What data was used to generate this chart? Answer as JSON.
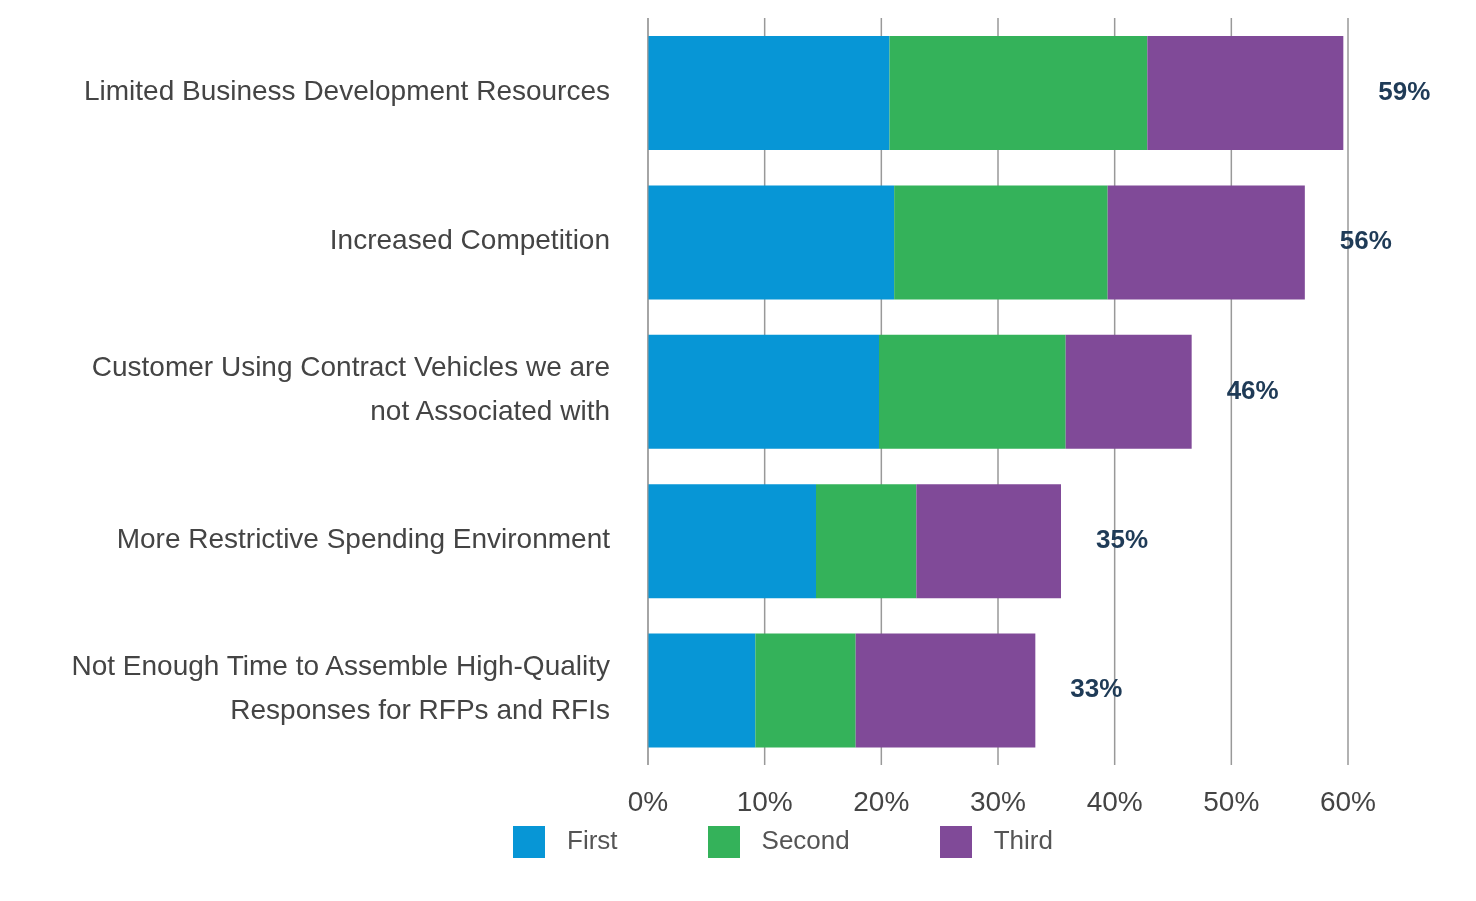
{
  "chart_data": {
    "type": "bar",
    "orientation": "horizontal",
    "stacked": true,
    "categories": [
      "Limited Business Development Resources",
      "Increased Competition",
      "Customer Using Contract Vehicles we are not Associated with",
      "More Restrictive Spending Environment",
      "Not Enough Time to Assemble High-Quality Responses for RFPs and RFIs"
    ],
    "series": [
      {
        "name": "First",
        "color": "#0796d6",
        "values": [
          20.7,
          21.1,
          19.8,
          14.4,
          9.2
        ]
      },
      {
        "name": "Second",
        "color": "#34b25a",
        "values": [
          22.1,
          18.3,
          16.0,
          8.6,
          8.6
        ]
      },
      {
        "name": "Third",
        "color": "#804a98",
        "values": [
          16.8,
          16.9,
          10.8,
          12.4,
          15.4
        ]
      }
    ],
    "totals": [
      "59%",
      "56%",
      "46%",
      "35%",
      "33%"
    ],
    "xlim": [
      0,
      60
    ],
    "xticks": [
      {
        "value": 0,
        "label": "0%"
      },
      {
        "value": 10,
        "label": "10%"
      },
      {
        "value": 20,
        "label": "20%"
      },
      {
        "value": 30,
        "label": "30%"
      },
      {
        "value": 40,
        "label": "40%"
      },
      {
        "value": 50,
        "label": "50%"
      },
      {
        "value": 60,
        "label": "60%"
      }
    ],
    "grid": "x",
    "legend": "bottom"
  }
}
